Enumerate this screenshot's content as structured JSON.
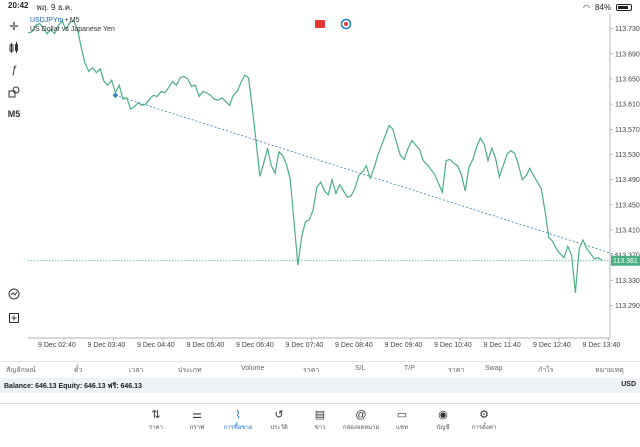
{
  "status": {
    "time": "20:42",
    "date": "พฤ. 9 ธ.ค.",
    "battery": "84%",
    "battery_level": 0.84
  },
  "symbol": {
    "name": "USDJPYm",
    "sep": " • ",
    "timeframe": "M5",
    "description": "US Dollar vs Japanese Yen"
  },
  "toolbar": {
    "timeframe": "M5"
  },
  "colors": {
    "line": "#4caf84",
    "trend": "#3b7fc4",
    "bid_line": "#4caf84",
    "price_tag": "#4caf84",
    "accent": "#1976d2"
  },
  "chart_data": {
    "type": "line",
    "y_ticks": [
      "113.730",
      "113.690",
      "113.650",
      "113.610",
      "113.570",
      "113.530",
      "113.490",
      "113.450",
      "113.410",
      "113.370",
      "113.330",
      "113.290"
    ],
    "x_ticks": [
      "9 Dec 02:40",
      "9 Dec 03:40",
      "9 Dec 04:40",
      "9 Dec 05:40",
      "9 Dec 06:40",
      "9 Dec 07:40",
      "9 Dec 08:40",
      "9 Dec 09:40",
      "9 Dec 10:40",
      "9 Dec 11:40",
      "9 Dec 12:40",
      "9 Dec 13:40"
    ],
    "ylim": [
      113.27,
      113.75
    ],
    "current_price": "113.361",
    "current_value": 113.361,
    "grid": false,
    "series": [
      {
        "values": [
          113.723,
          113.725,
          113.735,
          113.738,
          113.732,
          113.722,
          113.728,
          113.722,
          113.735,
          113.742,
          113.728,
          113.74,
          113.742,
          113.73,
          113.7,
          113.675,
          113.662,
          113.668,
          113.66,
          113.666,
          113.646,
          113.64,
          113.648,
          113.628,
          113.64,
          113.618,
          113.62,
          113.602,
          113.606,
          113.612,
          113.608,
          113.61,
          113.618,
          113.624,
          113.622,
          113.63,
          113.628,
          113.636,
          113.646,
          113.64,
          113.652,
          113.654,
          113.65,
          113.638,
          113.64,
          113.622,
          113.63,
          113.628,
          113.624,
          113.618,
          113.616,
          113.62,
          113.614,
          113.608,
          113.624,
          113.63,
          113.644,
          113.656,
          113.652,
          113.604,
          113.55,
          113.495,
          113.516,
          113.54,
          113.512,
          113.5,
          113.534,
          113.528,
          113.514,
          113.49,
          113.422,
          113.354,
          113.4,
          113.423,
          113.426,
          113.442,
          113.478,
          113.486,
          113.472,
          113.466,
          113.49,
          113.468,
          113.482,
          113.472,
          113.462,
          113.464,
          113.476,
          113.496,
          113.502,
          113.512,
          113.492,
          113.508,
          113.528,
          113.544,
          113.56,
          113.576,
          113.57,
          113.548,
          113.528,
          113.522,
          113.54,
          113.552,
          113.545,
          113.538,
          113.52,
          113.514,
          113.506,
          113.498,
          113.484,
          113.47,
          113.52,
          113.522,
          113.516,
          113.512,
          113.498,
          113.472,
          113.51,
          113.522,
          113.542,
          113.556,
          113.546,
          113.52,
          113.54,
          113.524,
          113.494,
          113.512,
          113.53,
          113.536,
          113.532,
          113.514,
          113.49,
          113.496,
          113.508,
          113.496,
          113.486,
          113.476,
          113.44,
          113.398,
          113.392,
          113.38,
          113.372,
          113.366,
          113.384,
          113.37,
          113.31,
          113.38,
          113.394,
          113.38,
          113.372,
          113.364,
          113.366,
          113.361
        ]
      }
    ],
    "trendline": {
      "from": [
        23,
        113.624
      ],
      "to": [
        158,
        113.364
      ]
    }
  },
  "trade_columns": [
    "สัญลักษณ์",
    "ตั๋ว",
    "เวลา",
    "ประเภท",
    "Volume",
    "ราคา",
    "S/L",
    "T/P",
    "ราคา",
    "Swap",
    "กำไร",
    "หมายเหตุ"
  ],
  "account": {
    "summary": "Balance: 646.13 Equity: 646.13 ฟรี: 646.13",
    "currency": "USD"
  },
  "tabs": [
    {
      "name": "quotes",
      "label": "ราคา",
      "icon": "⇅"
    },
    {
      "name": "chart",
      "label": "กราฟ",
      "icon": "⚌"
    },
    {
      "name": "trade",
      "label": "การซื้อขาย",
      "icon": "⌇"
    },
    {
      "name": "history",
      "label": "ประวัติ",
      "icon": "↺"
    },
    {
      "name": "news",
      "label": "ข่าว",
      "icon": "▤"
    },
    {
      "name": "mailbox",
      "label": "กล่องจดหมาย",
      "icon": "@"
    },
    {
      "name": "chat",
      "label": "แชท",
      "icon": "▭"
    },
    {
      "name": "accounts",
      "label": "บัญชี",
      "icon": "◉"
    },
    {
      "name": "settings",
      "label": "การตั้งค่า",
      "icon": "⚙"
    }
  ]
}
